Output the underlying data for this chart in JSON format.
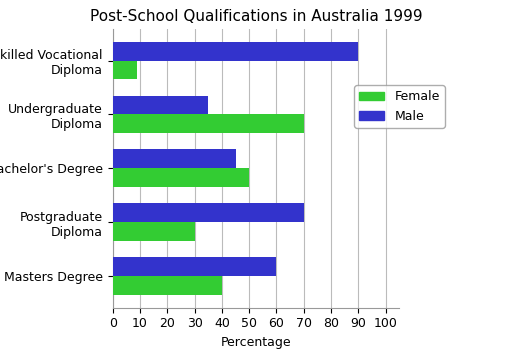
{
  "title": "Post-School Qualifications in Australia 1999",
  "categories": [
    "Skilled Vocational\nDiploma",
    "Undergraduate\nDiploma",
    "Bachelor's Degree",
    "Postgraduate\nDiploma",
    "Masters Degree"
  ],
  "female_values": [
    9,
    70,
    50,
    30,
    40
  ],
  "male_values": [
    90,
    35,
    45,
    70,
    60
  ],
  "female_color": "#33cc33",
  "male_color": "#3333cc",
  "xlabel": "Percentage",
  "xlim": [
    0,
    100
  ],
  "xticks": [
    0,
    10,
    20,
    30,
    40,
    50,
    60,
    70,
    80,
    90,
    100
  ],
  "title_fontsize": 11,
  "axis_fontsize": 9,
  "legend_labels": [
    "Female",
    "Male"
  ],
  "bar_height": 0.35,
  "background_color": "#ffffff",
  "grid_color": "#bbbbbb"
}
